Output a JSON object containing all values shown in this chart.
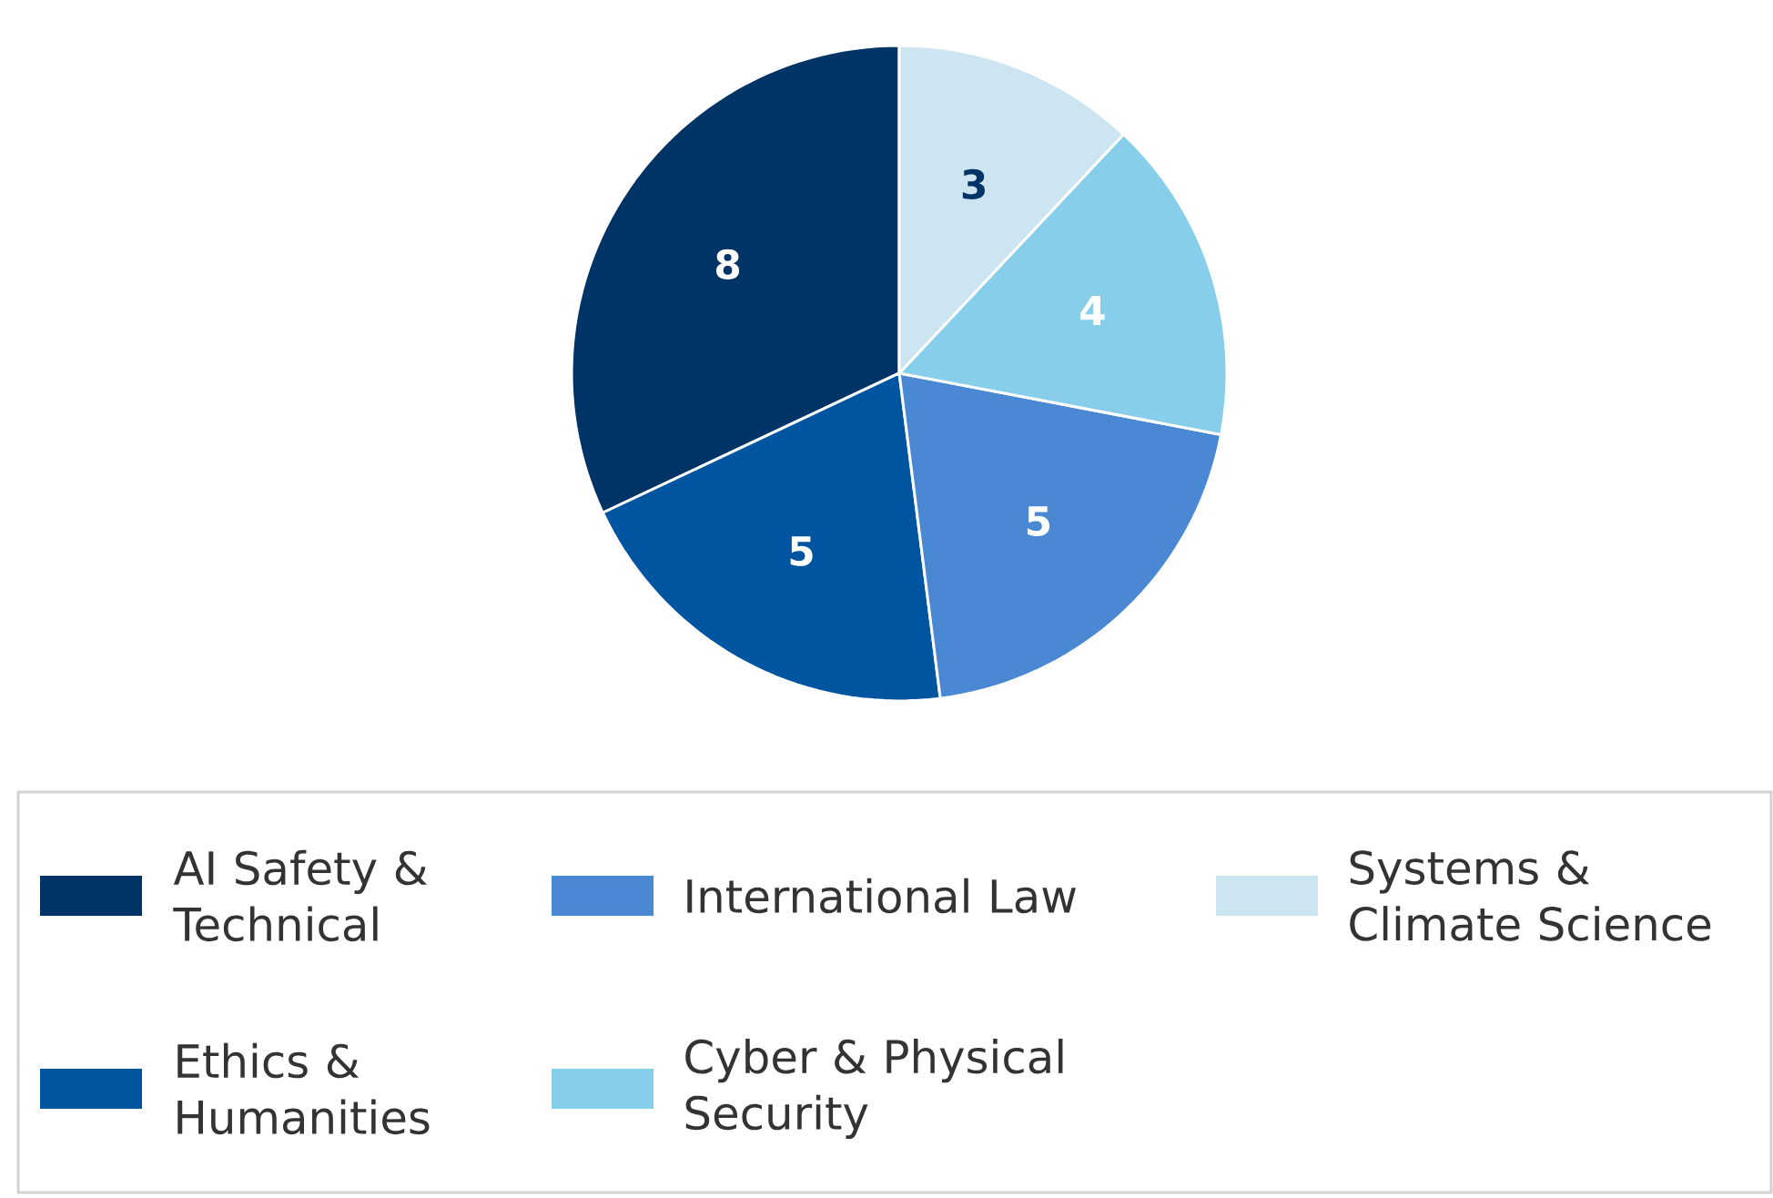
{
  "chart_data": {
    "type": "pie",
    "categories": [
      "AI Safety & Technical",
      "Ethics & Humanities",
      "International Law",
      "Cyber & Physical Security",
      "Systems & Climate Science"
    ],
    "values": [
      8,
      5,
      5,
      4,
      3
    ],
    "colors": [
      "#003366",
      "#0055a0",
      "#4a88d4",
      "#87ceeb",
      "#cce5f0"
    ],
    "data_labels": true,
    "legend": "bottom"
  }
}
